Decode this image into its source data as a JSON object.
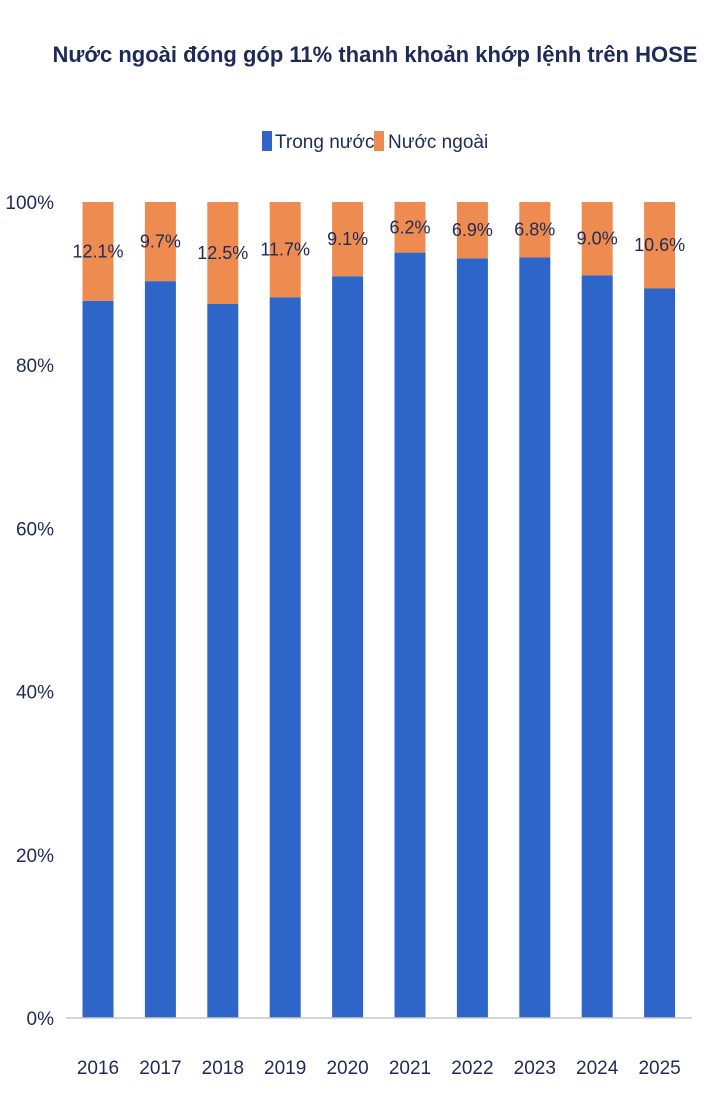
{
  "chart_data": {
    "type": "bar",
    "stacked": true,
    "title": "Nước ngoài đóng góp 11% thanh khoản khớp lệnh trên HOSE",
    "legend_position": "top",
    "grid": false,
    "categories": [
      "2016",
      "2017",
      "2018",
      "2019",
      "2020",
      "2021",
      "2022",
      "2023",
      "2024",
      "2025"
    ],
    "ylim": [
      0,
      100
    ],
    "y_ticks": [
      "0%",
      "20%",
      "40%",
      "60%",
      "80%",
      "100%"
    ],
    "series": [
      {
        "name": "Trong nước",
        "color": "#2d65c8",
        "values": [
          87.9,
          90.3,
          87.5,
          88.3,
          90.9,
          93.8,
          93.1,
          93.2,
          91.0,
          89.4
        ]
      },
      {
        "name": "Nước ngoài",
        "color": "#ee8b50",
        "values": [
          12.1,
          9.7,
          12.5,
          11.7,
          9.1,
          6.2,
          6.9,
          6.8,
          9.0,
          10.6
        ],
        "labels": [
          "12.1%",
          "9.7%",
          "12.5%",
          "11.7%",
          "9.1%",
          "6.2%",
          "6.9%",
          "6.8%",
          "9.0%",
          "10.6%"
        ]
      }
    ]
  }
}
